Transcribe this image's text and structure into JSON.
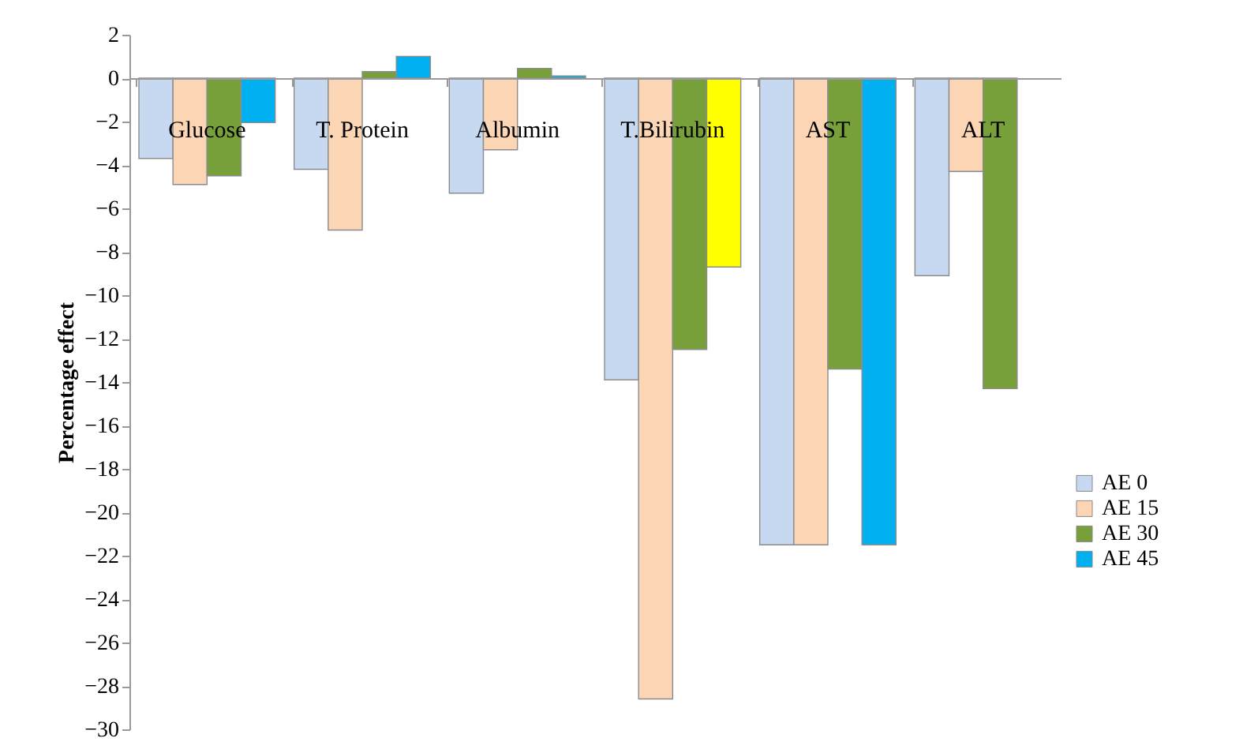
{
  "chart_data": {
    "type": "bar",
    "ylabel": "Percentage effect",
    "categories": [
      "Glucose",
      "T. Protein",
      "Albumin",
      "T.Bilirubin",
      "AST",
      "ALT"
    ],
    "series": [
      {
        "name": "AE 0",
        "color": "#c6d9f1",
        "values": [
          -3.7,
          -4.2,
          -5.3,
          -13.9,
          -21.5,
          -9.1
        ]
      },
      {
        "name": "AE 15",
        "color": "#fcd5b5",
        "values": [
          -4.9,
          -7.0,
          -3.3,
          -28.6,
          -21.5,
          -4.3
        ]
      },
      {
        "name": "AE 30",
        "color": "#77a03a",
        "values": [
          -4.5,
          0.3,
          0.45,
          -12.5,
          -13.4,
          -14.3
        ]
      },
      {
        "name": "AE 45",
        "color": "#00b0f0",
        "colors": [
          "#00b0f0",
          "#00b0f0",
          "#00b0f0",
          "#ffff00",
          "#00b0f0",
          "#00b0f0"
        ],
        "values": [
          -2.05,
          1.0,
          0.1,
          -8.7,
          -21.5,
          null
        ]
      }
    ],
    "ylim": [
      -30,
      2
    ],
    "yticks": [
      -30,
      -28,
      -26,
      -24,
      -22,
      -20,
      -18,
      -16,
      -14,
      -12,
      -10,
      -8,
      -6,
      -4,
      -2,
      0,
      2
    ],
    "grid": false,
    "legend": "right"
  }
}
